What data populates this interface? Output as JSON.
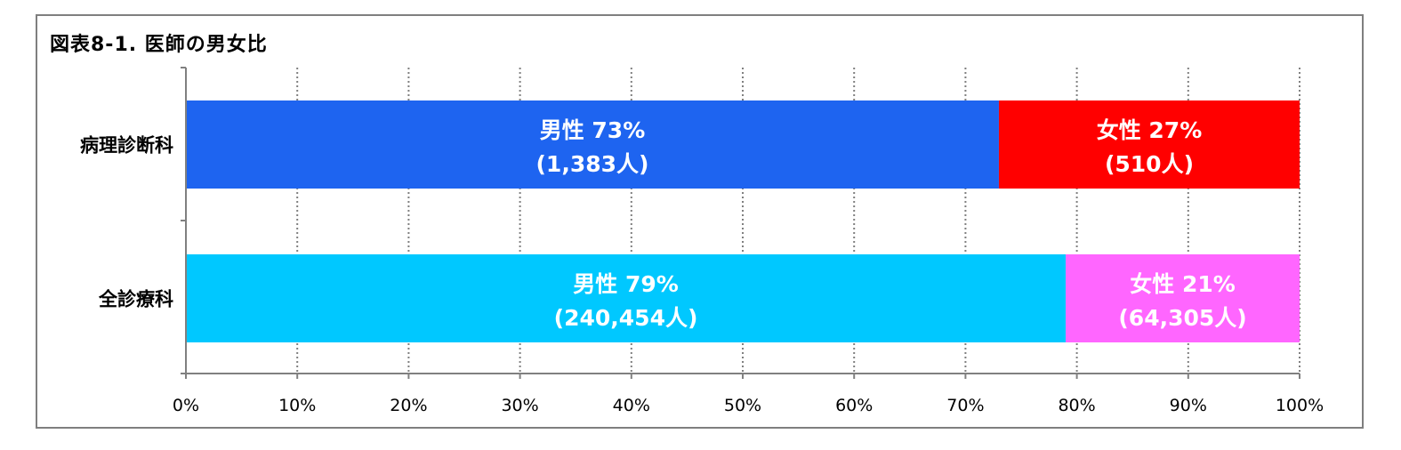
{
  "title": "図表8-1. 医師の男女比",
  "colors": {
    "male_pathology": "#1e64f0",
    "female_pathology": "#ff0000",
    "male_all": "#00c8ff",
    "female_all": "#ff66ff"
  },
  "chart_data": {
    "type": "bar",
    "orientation": "horizontal",
    "stacked": true,
    "normalized": true,
    "categories": [
      "病理診断科",
      "全診療科"
    ],
    "series": [
      {
        "name": "男性",
        "values": [
          73,
          79
        ],
        "labels": [
          [
            "男性 73%",
            "(1,383人)"
          ],
          [
            "男性 79%",
            "(240,454人)"
          ]
        ]
      },
      {
        "name": "女性",
        "values": [
          27,
          21
        ],
        "labels": [
          [
            "女性 27%",
            "(510人)"
          ],
          [
            "女性 21%",
            "(64,305人)"
          ]
        ]
      }
    ],
    "counts": {
      "男性": [
        1383,
        240454
      ],
      "女性": [
        510,
        64305
      ]
    },
    "xlim": [
      0,
      100
    ],
    "x_ticks": [
      "0%",
      "10%",
      "20%",
      "30%",
      "40%",
      "50%",
      "60%",
      "70%",
      "80%",
      "90%",
      "100%"
    ],
    "grid": "vertical dotted",
    "legend": "none"
  }
}
